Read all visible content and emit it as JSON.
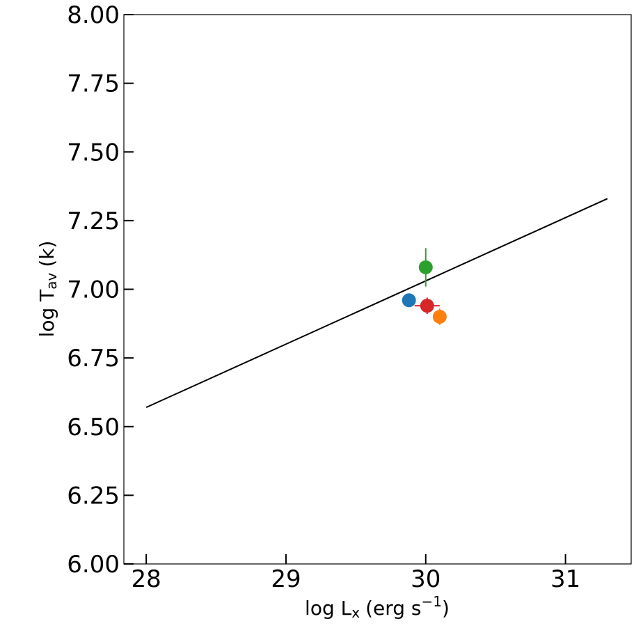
{
  "chart_data": {
    "type": "scatter",
    "xlabel": "log L",
    "xlabel_sub": "x",
    "xlabel_unit": "(erg s",
    "xlabel_sup": "−1",
    "xlabel_close": ")",
    "ylabel": "log T",
    "ylabel_sub": "av",
    "ylabel_unit": "(k)",
    "xlim": [
      27.84,
      31.47
    ],
    "ylim": [
      6.0,
      8.0
    ],
    "xticks": [
      28,
      29,
      30,
      31
    ],
    "xtick_labels": [
      "28",
      "29",
      "30",
      "31"
    ],
    "yticks": [
      6.0,
      6.25,
      6.5,
      6.75,
      7.0,
      7.25,
      7.5,
      7.75,
      8.0
    ],
    "ytick_labels": [
      "6.00",
      "6.25",
      "6.50",
      "6.75",
      "7.00",
      "7.25",
      "7.50",
      "7.75",
      "8.00"
    ],
    "grid": false,
    "points": [
      {
        "x": 29.88,
        "y": 6.96,
        "yerr": 0.02,
        "xerr": 0.0,
        "color": "#1f77b4"
      },
      {
        "x": 30.1,
        "y": 6.9,
        "yerr": 0.03,
        "xerr": 0.0,
        "color": "#ff7f0e"
      },
      {
        "x": 30.0,
        "y": 7.08,
        "yerr": 0.07,
        "xerr": 0.0,
        "color": "#2ca02c"
      },
      {
        "x": 30.01,
        "y": 6.94,
        "yerr": 0.03,
        "xerr": 0.09,
        "color": "#d62728"
      }
    ],
    "fit_line": {
      "x": [
        28.0,
        31.3
      ],
      "y": [
        6.57,
        7.33
      ],
      "color": "#000000"
    }
  }
}
